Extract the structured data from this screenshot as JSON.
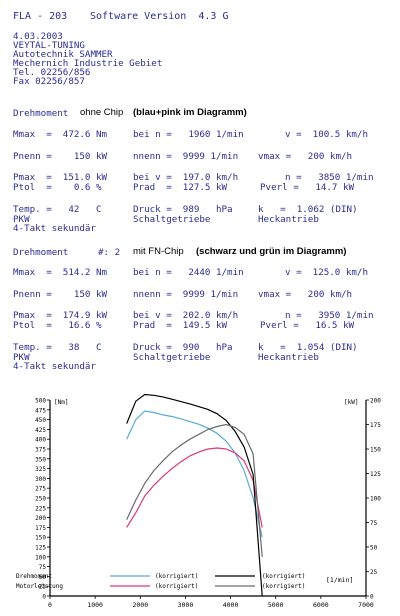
{
  "header": {
    "model": "FLA - 203",
    "software": "Software Version  4.3 G",
    "date": "4.03.2003",
    "company": [
      "VEYTAL-TUNING",
      "Autotechnik SAMMER",
      "Mechernich Industrie Gebiet",
      "Tel. 02256/856",
      "Fax 02256/857"
    ]
  },
  "run1": {
    "title": "Drehmoment",
    "note_a": "ohne Chip",
    "note_b": "(blau+pink im Diagramm)",
    "rows": [
      [
        "Mmax  =  472.6 Nm",
        "bei n =   1960 1/min",
        "v =  100.5 km/h"
      ],
      [
        "Pnenn =    150 kW",
        "nnenn =  9999 1/min",
        "vmax =   200 km/h"
      ],
      [
        "Pmax  =  151.0 kW",
        "bei v =  197.0 km/h",
        "n =   3850 1/min"
      ],
      [
        "Ptol  =    0.6 %",
        "Prad  =  127.5 kW",
        "Pverl =   14.7 kW"
      ],
      [
        "Temp. =   42   C",
        "Druck =  989   hPa",
        "k   =  1.062 (DIN)"
      ],
      [
        "PKW",
        "Schaltgetriebe",
        "Heckantrieb"
      ],
      [
        "4-Takt sekundär"
      ]
    ]
  },
  "run2": {
    "title": "Drehmoment",
    "run_no": "#: 2",
    "note_a": "mit FN-Chip",
    "note_b": "(schwarz und grün im Diagramm)",
    "rows": [
      [
        "Mmax  =  514.2 Nm",
        "bei n =   2440 1/min",
        "v =  125.0 km/h"
      ],
      [
        "Pnenn =    150 kW",
        "nnenn =  9999 1/min",
        "vmax =   200 km/h"
      ],
      [
        "Pmax  =  174.9 kW",
        "bei v =  202.0 km/h",
        "n =   3950 1/min"
      ],
      [
        "Ptol  =   16.6 %",
        "Prad  =  149.5 kW",
        "Pverl =   16.5 kW"
      ],
      [
        "Temp. =   38   C",
        "Druck =  990   hPa",
        "k   =  1.054 (DIN)"
      ],
      [
        "PKW",
        "Schaltgetriebe",
        "Heckantrieb"
      ],
      [
        "4-Takt sekundär"
      ]
    ]
  },
  "colors": {
    "text": "#2a2f8f",
    "blue": "#5aa9d6",
    "pink": "#d83a7a",
    "black": "#000000",
    "grey": "#6a6a6a"
  },
  "chart_data": {
    "type": "line",
    "x": [
      1700,
      1900,
      2100,
      2300,
      2500,
      2700,
      2900,
      3100,
      3300,
      3500,
      3700,
      3900,
      4100,
      4300,
      4500,
      4700
    ],
    "xlabel": "[1/min]",
    "ylabel_left": "[Nm]",
    "ylabel_right": "[kW]",
    "xlim": [
      0,
      7000
    ],
    "ylim_left": [
      0,
      500
    ],
    "ylim_right": [
      0,
      200
    ],
    "x_ticks": [
      "0",
      "1000",
      "2000",
      "3000",
      "4000",
      "5000",
      "6000",
      "7000"
    ],
    "y_ticks_left": [
      "0",
      "25",
      "50",
      "75",
      "100",
      "125",
      "150",
      "175",
      "200",
      "225",
      "250",
      "275",
      "300",
      "325",
      "350",
      "375",
      "400",
      "425",
      "450",
      "475",
      "500"
    ],
    "y_ticks_right": [
      "0",
      "25",
      "50",
      "75",
      "100",
      "125",
      "150",
      "175",
      "200"
    ],
    "legend": [
      {
        "label": "Drehmoment",
        "tag": "(korrigiert)",
        "tag2": "(korrigiert)"
      },
      {
        "label": "Motorleistung",
        "tag": "(korrigiert)",
        "tag2": "(korrigiert)"
      }
    ],
    "series": [
      {
        "color": "#5aa9d6",
        "axis": "left",
        "values": [
          400,
          450,
          472,
          468,
          462,
          458,
          452,
          445,
          438,
          428,
          415,
          395,
          365,
          320,
          250,
          150
        ]
      },
      {
        "color": "#d83a7a",
        "axis": "right",
        "values": [
          70,
          85,
          102,
          113,
          122,
          130,
          137,
          143,
          147,
          150,
          151,
          150,
          146,
          138,
          118,
          70
        ]
      },
      {
        "color": "#000000",
        "axis": "left",
        "values": [
          440,
          497,
          514,
          512,
          508,
          502,
          496,
          490,
          483,
          476,
          465,
          448,
          420,
          380,
          310,
          0
        ]
      },
      {
        "color": "#6a6a6a",
        "axis": "right",
        "values": [
          78,
          98,
          115,
          128,
          138,
          147,
          154,
          160,
          165,
          170,
          173,
          175,
          172,
          165,
          145,
          40
        ]
      }
    ]
  }
}
